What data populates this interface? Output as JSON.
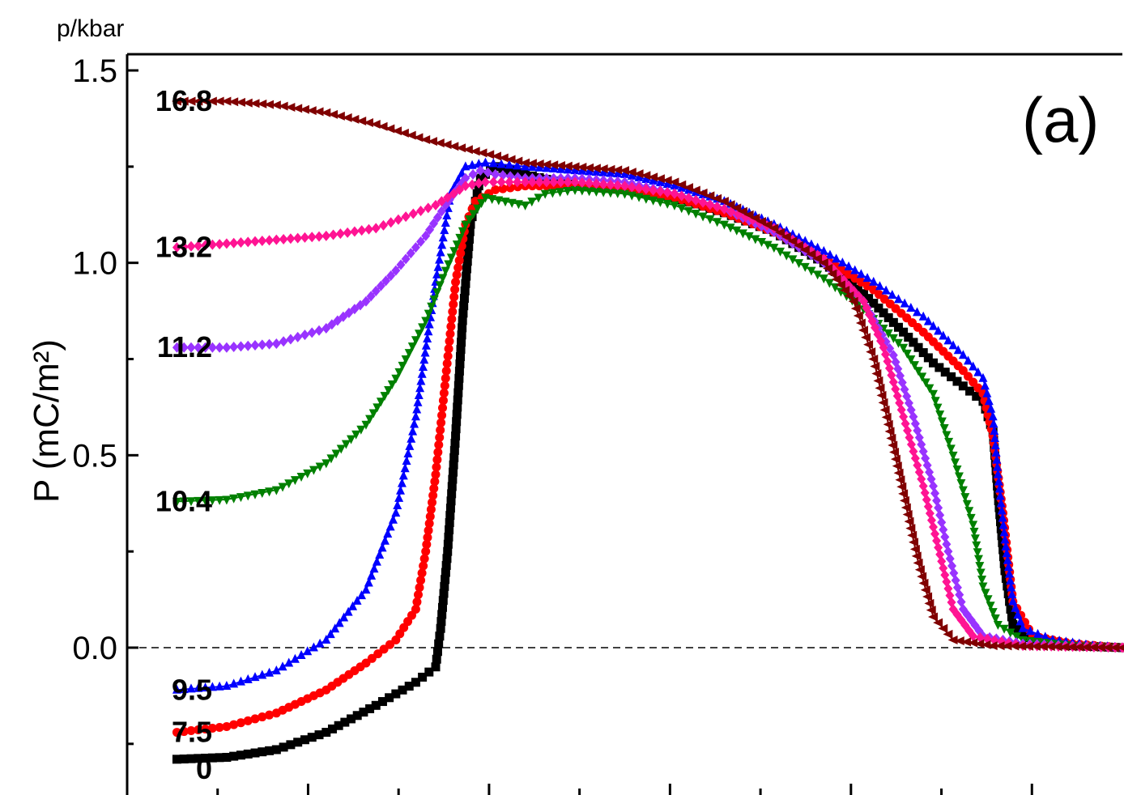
{
  "chart_data": {
    "type": "scatter",
    "title": "",
    "panel_label": "(a)",
    "legend_title": "p/kbar",
    "xlabel": "",
    "ylabel": "P (mC/m²)",
    "x_units": "normalized",
    "xlim": [
      0,
      1
    ],
    "ylim": [
      -0.38,
      1.55
    ],
    "yticks": [
      "0.0",
      "0.5",
      "1.0",
      "1.5"
    ],
    "ytick_values": [
      0,
      0.5,
      1.0,
      1.5
    ],
    "reference_line": {
      "y": 0,
      "style": "dashed"
    },
    "grid": false,
    "series": [
      {
        "name": "0",
        "color": "#000000",
        "marker": "square",
        "points": [
          [
            0.05,
            -0.29
          ],
          [
            0.1,
            -0.285
          ],
          [
            0.15,
            -0.265
          ],
          [
            0.2,
            -0.22
          ],
          [
            0.25,
            -0.15
          ],
          [
            0.29,
            -0.09
          ],
          [
            0.31,
            -0.05
          ],
          [
            0.315,
            0.05
          ],
          [
            0.322,
            0.25
          ],
          [
            0.33,
            0.55
          ],
          [
            0.337,
            0.85
          ],
          [
            0.345,
            1.1
          ],
          [
            0.355,
            1.22
          ],
          [
            0.37,
            1.25
          ],
          [
            0.4,
            1.23
          ],
          [
            0.45,
            1.2
          ],
          [
            0.5,
            1.19
          ],
          [
            0.55,
            1.17
          ],
          [
            0.6,
            1.13
          ],
          [
            0.65,
            1.08
          ],
          [
            0.7,
            1.0
          ],
          [
            0.74,
            0.92
          ],
          [
            0.78,
            0.82
          ],
          [
            0.81,
            0.74
          ],
          [
            0.84,
            0.68
          ],
          [
            0.86,
            0.64
          ],
          [
            0.87,
            0.56
          ],
          [
            0.875,
            0.4
          ],
          [
            0.882,
            0.2
          ],
          [
            0.89,
            0.06
          ],
          [
            0.91,
            0.015
          ],
          [
            0.95,
            0.005
          ],
          [
            1.0,
            0.0
          ]
        ]
      },
      {
        "name": "7.5",
        "color": "#ff0000",
        "marker": "circle",
        "points": [
          [
            0.05,
            -0.22
          ],
          [
            0.1,
            -0.205
          ],
          [
            0.15,
            -0.17
          ],
          [
            0.2,
            -0.11
          ],
          [
            0.24,
            -0.04
          ],
          [
            0.27,
            0.02
          ],
          [
            0.29,
            0.1
          ],
          [
            0.3,
            0.25
          ],
          [
            0.31,
            0.45
          ],
          [
            0.32,
            0.7
          ],
          [
            0.33,
            0.95
          ],
          [
            0.34,
            1.1
          ],
          [
            0.35,
            1.16
          ],
          [
            0.37,
            1.19
          ],
          [
            0.4,
            1.2
          ],
          [
            0.45,
            1.2
          ],
          [
            0.5,
            1.19
          ],
          [
            0.55,
            1.17
          ],
          [
            0.6,
            1.13
          ],
          [
            0.65,
            1.08
          ],
          [
            0.7,
            1.01
          ],
          [
            0.75,
            0.93
          ],
          [
            0.8,
            0.82
          ],
          [
            0.84,
            0.72
          ],
          [
            0.86,
            0.66
          ],
          [
            0.87,
            0.55
          ],
          [
            0.88,
            0.35
          ],
          [
            0.89,
            0.12
          ],
          [
            0.91,
            0.03
          ],
          [
            0.95,
            0.01
          ],
          [
            1.0,
            0.0
          ]
        ]
      },
      {
        "name": "9.5",
        "color": "#0000ff",
        "marker": "triangle-up",
        "points": [
          [
            0.05,
            -0.11
          ],
          [
            0.1,
            -0.1
          ],
          [
            0.15,
            -0.06
          ],
          [
            0.2,
            0.02
          ],
          [
            0.24,
            0.15
          ],
          [
            0.27,
            0.35
          ],
          [
            0.29,
            0.6
          ],
          [
            0.31,
            0.95
          ],
          [
            0.325,
            1.18
          ],
          [
            0.34,
            1.25
          ],
          [
            0.36,
            1.26
          ],
          [
            0.4,
            1.25
          ],
          [
            0.45,
            1.24
          ],
          [
            0.5,
            1.23
          ],
          [
            0.55,
            1.2
          ],
          [
            0.6,
            1.16
          ],
          [
            0.65,
            1.1
          ],
          [
            0.7,
            1.03
          ],
          [
            0.75,
            0.95
          ],
          [
            0.8,
            0.86
          ],
          [
            0.84,
            0.76
          ],
          [
            0.86,
            0.7
          ],
          [
            0.87,
            0.6
          ],
          [
            0.875,
            0.45
          ],
          [
            0.882,
            0.28
          ],
          [
            0.89,
            0.12
          ],
          [
            0.9,
            0.05
          ],
          [
            0.93,
            0.02
          ],
          [
            0.97,
            0.005
          ],
          [
            1.0,
            0.0
          ]
        ]
      },
      {
        "name": "10.4",
        "color": "#008000",
        "marker": "triangle-down",
        "points": [
          [
            0.05,
            0.38
          ],
          [
            0.1,
            0.385
          ],
          [
            0.15,
            0.41
          ],
          [
            0.2,
            0.48
          ],
          [
            0.24,
            0.58
          ],
          [
            0.27,
            0.7
          ],
          [
            0.3,
            0.85
          ],
          [
            0.32,
            0.98
          ],
          [
            0.34,
            1.1
          ],
          [
            0.36,
            1.17
          ],
          [
            0.38,
            1.16
          ],
          [
            0.4,
            1.15
          ],
          [
            0.42,
            1.18
          ],
          [
            0.45,
            1.19
          ],
          [
            0.5,
            1.18
          ],
          [
            0.55,
            1.15
          ],
          [
            0.6,
            1.1
          ],
          [
            0.65,
            1.04
          ],
          [
            0.7,
            0.96
          ],
          [
            0.74,
            0.88
          ],
          [
            0.78,
            0.78
          ],
          [
            0.81,
            0.66
          ],
          [
            0.83,
            0.5
          ],
          [
            0.85,
            0.32
          ],
          [
            0.86,
            0.16
          ],
          [
            0.875,
            0.06
          ],
          [
            0.9,
            0.02
          ],
          [
            0.95,
            0.005
          ],
          [
            1.0,
            0.0
          ]
        ]
      },
      {
        "name": "11.2",
        "color": "#9933ff",
        "marker": "diamond",
        "points": [
          [
            0.05,
            0.78
          ],
          [
            0.1,
            0.78
          ],
          [
            0.15,
            0.79
          ],
          [
            0.2,
            0.83
          ],
          [
            0.24,
            0.9
          ],
          [
            0.27,
            0.98
          ],
          [
            0.3,
            1.07
          ],
          [
            0.32,
            1.15
          ],
          [
            0.34,
            1.22
          ],
          [
            0.355,
            1.24
          ],
          [
            0.37,
            1.23
          ],
          [
            0.4,
            1.22
          ],
          [
            0.45,
            1.22
          ],
          [
            0.5,
            1.21
          ],
          [
            0.55,
            1.18
          ],
          [
            0.6,
            1.14
          ],
          [
            0.65,
            1.08
          ],
          [
            0.7,
            1.0
          ],
          [
            0.74,
            0.9
          ],
          [
            0.77,
            0.76
          ],
          [
            0.79,
            0.6
          ],
          [
            0.81,
            0.42
          ],
          [
            0.825,
            0.25
          ],
          [
            0.84,
            0.1
          ],
          [
            0.86,
            0.03
          ],
          [
            0.9,
            0.01
          ],
          [
            1.0,
            0.0
          ]
        ]
      },
      {
        "name": "13.2",
        "color": "#ff1493",
        "marker": "diamond",
        "points": [
          [
            0.05,
            1.04
          ],
          [
            0.1,
            1.05
          ],
          [
            0.15,
            1.06
          ],
          [
            0.2,
            1.07
          ],
          [
            0.25,
            1.09
          ],
          [
            0.28,
            1.12
          ],
          [
            0.31,
            1.15
          ],
          [
            0.34,
            1.2
          ],
          [
            0.36,
            1.21
          ],
          [
            0.4,
            1.21
          ],
          [
            0.45,
            1.21
          ],
          [
            0.5,
            1.2
          ],
          [
            0.55,
            1.18
          ],
          [
            0.6,
            1.14
          ],
          [
            0.65,
            1.09
          ],
          [
            0.7,
            1.01
          ],
          [
            0.74,
            0.9
          ],
          [
            0.76,
            0.78
          ],
          [
            0.78,
            0.6
          ],
          [
            0.8,
            0.42
          ],
          [
            0.815,
            0.26
          ],
          [
            0.83,
            0.1
          ],
          [
            0.85,
            0.03
          ],
          [
            0.9,
            0.005
          ],
          [
            1.0,
            0.0
          ]
        ]
      },
      {
        "name": "16.8",
        "color": "#800000",
        "marker": "triangle-left",
        "points": [
          [
            0.05,
            1.42
          ],
          [
            0.1,
            1.42
          ],
          [
            0.15,
            1.41
          ],
          [
            0.2,
            1.39
          ],
          [
            0.25,
            1.36
          ],
          [
            0.3,
            1.32
          ],
          [
            0.35,
            1.29
          ],
          [
            0.4,
            1.26
          ],
          [
            0.45,
            1.25
          ],
          [
            0.5,
            1.24
          ],
          [
            0.55,
            1.21
          ],
          [
            0.6,
            1.16
          ],
          [
            0.65,
            1.09
          ],
          [
            0.7,
            1.0
          ],
          [
            0.73,
            0.9
          ],
          [
            0.75,
            0.75
          ],
          [
            0.765,
            0.58
          ],
          [
            0.78,
            0.4
          ],
          [
            0.795,
            0.22
          ],
          [
            0.81,
            0.08
          ],
          [
            0.83,
            0.02
          ],
          [
            0.87,
            0.005
          ],
          [
            1.0,
            0.0
          ]
        ]
      }
    ],
    "series_labels": [
      {
        "text": "16.8",
        "y": 1.42,
        "color": "#000000"
      },
      {
        "text": "13.2",
        "y": 1.04,
        "color": "#000000"
      },
      {
        "text": "11.2",
        "y": 0.78,
        "color": "#000000"
      },
      {
        "text": "10.4",
        "y": 0.38,
        "color": "#000000"
      },
      {
        "text": "9.5",
        "y": -0.11,
        "color": "#000000"
      },
      {
        "text": "7.5",
        "y": -0.22,
        "color": "#000000"
      },
      {
        "text": "0",
        "y": -0.31,
        "color": "#000000"
      }
    ]
  }
}
